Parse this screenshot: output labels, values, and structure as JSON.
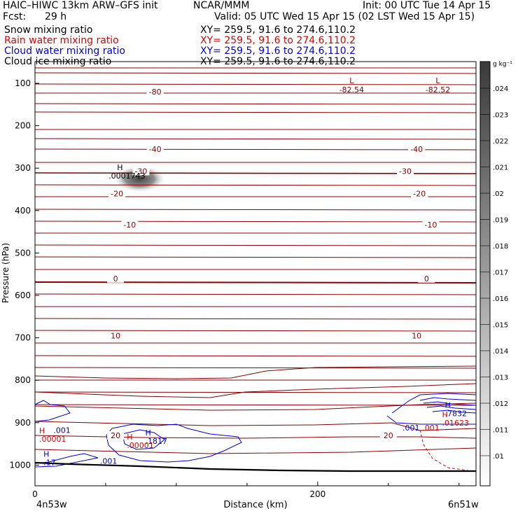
{
  "header": {
    "title": "HAIC–HIWC 13km ARW–GFS init",
    "org": "NCAR/MMM",
    "init": "Init: 00 UTC Tue 14 Apr 15",
    "fcst_label": "Fcst:",
    "fcst_value": "29 h",
    "valid": "Valid: 05 UTC Wed 15 Apr 15 (02 LST Wed 15 Apr 15)"
  },
  "fields": [
    {
      "name": "Snow mixing ratio",
      "xy": "XY= 259.5, 91.6 to 274.6,110.2",
      "color": "#000000"
    },
    {
      "name": "Rain water mixing ratio",
      "xy": "XY= 259.5, 91.6 to 274.6,110.2",
      "color": "#e00000"
    },
    {
      "name": "Cloud water mixing ratio",
      "xy": "XY= 259.5, 91.6 to 274.6,110.2",
      "color": "#0000e0"
    },
    {
      "name": "Cloud ice mixing ratio",
      "xy": "XY= 259.5, 91.6 to 274.6,110.2",
      "color": "#000000"
    }
  ],
  "chart_data": {
    "type": "contour",
    "ylabel": "Pressure (hPa)",
    "xlabel": "Distance (km)",
    "y_ticks": [
      100,
      200,
      300,
      400,
      500,
      600,
      700,
      800,
      900,
      1000
    ],
    "x_ticks": [
      0,
      200
    ],
    "left_point": "4n53w",
    "right_point": "6n51w",
    "colorbar": {
      "unit": "g kg⁻¹",
      "ticks": [
        ".024",
        ".023",
        ".022",
        ".021",
        ".02",
        ".019",
        ".018",
        ".017",
        ".016",
        ".015",
        ".014",
        ".013",
        ".012",
        ".011",
        ".01"
      ]
    },
    "temperature_contours": {
      "color": "#8b0000",
      "labels": [
        {
          "text": "-80",
          "x": 85,
          "p": 125
        },
        {
          "text": "-40",
          "x": 85,
          "p": 260
        },
        {
          "text": "-40",
          "x": 270,
          "p": 260
        },
        {
          "text": "-30",
          "x": 75,
          "p": 312
        },
        {
          "text": "-30",
          "x": 262,
          "p": 312
        },
        {
          "text": "-20",
          "x": 58,
          "p": 365
        },
        {
          "text": "-20",
          "x": 272,
          "p": 365
        },
        {
          "text": "-10",
          "x": 67,
          "p": 438
        },
        {
          "text": "-10",
          "x": 280,
          "p": 438
        },
        {
          "text": "0",
          "x": 57,
          "p": 565
        },
        {
          "text": "0",
          "x": 277,
          "p": 565
        },
        {
          "text": "10",
          "x": 57,
          "p": 700
        },
        {
          "text": "10",
          "x": 270,
          "p": 700
        },
        {
          "text": "20",
          "x": 57,
          "p": 935
        },
        {
          "text": "20",
          "x": 250,
          "p": 935
        }
      ],
      "extremes": [
        {
          "type": "L",
          "value": "-82.54",
          "x": 224,
          "p": 110
        },
        {
          "type": "L",
          "value": "-82.52",
          "x": 285,
          "p": 110
        }
      ]
    },
    "cloud_ice_max": {
      "type": "H",
      "value": ".0001743",
      "x": 62,
      "p": 308
    },
    "cloud_water": {
      "color": "#0000e0",
      "labels": [
        {
          "text": ".001",
          "x": 13,
          "p": 918
        },
        {
          "text": ".001",
          "x": 46,
          "p": 990
        },
        {
          "text": ".001",
          "x": 260,
          "p": 912
        }
      ],
      "extremes": [
        {
          "type": "H",
          "value": ".17",
          "x": 6,
          "p": 990
        },
        {
          "type": "H",
          "value": ".1817",
          "x": 78,
          "p": 940
        },
        {
          "type": "H",
          "value": ".7832",
          "x": 290,
          "p": 875
        }
      ]
    },
    "rain_water": {
      "color": "#e00000",
      "labels": [
        {
          "text": ".001",
          "x": 274,
          "p": 912
        }
      ],
      "extremes": [
        {
          "type": "H",
          "value": ".00001",
          "x": 3,
          "p": 935
        },
        {
          "type": "H",
          "value": ".00001",
          "x": 65,
          "p": 950
        },
        {
          "type": "H",
          "value": ".01623",
          "x": 288,
          "p": 897
        }
      ]
    }
  }
}
